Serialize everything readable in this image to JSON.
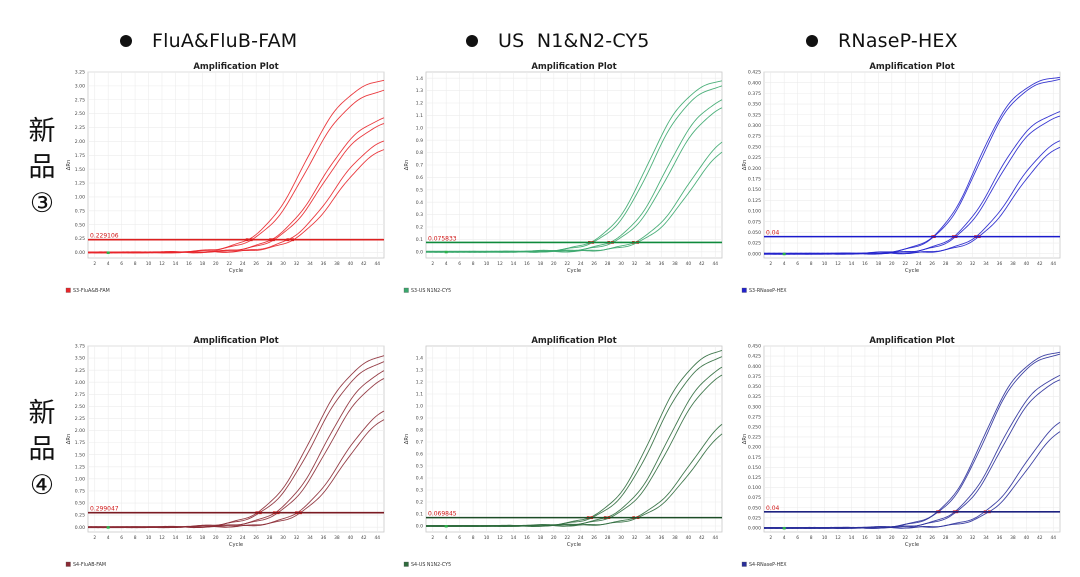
{
  "headers": [
    {
      "label": "FluA&FluB-FAM"
    },
    {
      "label": "US  N1&N2-CY5"
    },
    {
      "label": "RNaseP-HEX"
    }
  ],
  "rows": [
    {
      "label": [
        "新",
        "品",
        "③"
      ]
    },
    {
      "label": [
        "新",
        "品",
        "④"
      ]
    }
  ],
  "chart_data": [
    {
      "type": "line",
      "title": "Amplification Plot",
      "xlabel": "Cycle",
      "ylabel": "ΔRn",
      "xlim": [
        1,
        45
      ],
      "ylim": [
        -0.1,
        3.25
      ],
      "yticks": [
        0.0,
        0.25,
        0.5,
        0.75,
        1.0,
        1.25,
        1.5,
        1.75,
        2.0,
        2.25,
        2.5,
        2.75,
        3.0,
        3.25
      ],
      "ytick_labels": [
        "0.00",
        "0.25",
        "0.50",
        "0.75",
        "1.00",
        "1.25",
        "1.50",
        "1.75",
        "2.00",
        "2.25",
        "2.50",
        "2.75",
        "3.00",
        "3.25"
      ],
      "xticks": [
        2,
        4,
        6,
        8,
        10,
        12,
        14,
        16,
        18,
        20,
        22,
        24,
        26,
        28,
        30,
        32,
        34,
        36,
        38,
        40,
        42,
        44
      ],
      "threshold": 0.229106,
      "threshold_label": "0.229106",
      "color": "#e8252a",
      "threshold_color": "#dd1f1f",
      "legend": "S3-FluA&B-FAM",
      "series": [
        {
          "plateau": 3.2,
          "midpoint": 33.2,
          "slope": 0.3
        },
        {
          "plateau": 3.02,
          "midpoint": 33.6,
          "slope": 0.3
        },
        {
          "plateau": 2.55,
          "midpoint": 35.6,
          "slope": 0.31
        },
        {
          "plateau": 2.45,
          "midpoint": 35.9,
          "slope": 0.31
        },
        {
          "plateau": 2.18,
          "midpoint": 37.4,
          "slope": 0.32
        },
        {
          "plateau": 2.05,
          "midpoint": 37.9,
          "slope": 0.32
        }
      ]
    },
    {
      "type": "line",
      "title": "Amplification Plot",
      "xlabel": "Cycle",
      "ylabel": "ΔRn",
      "xlim": [
        1,
        45
      ],
      "ylim": [
        -0.05,
        1.45
      ],
      "yticks": [
        0.0,
        0.1,
        0.2,
        0.3,
        0.4,
        0.5,
        0.6,
        0.7,
        0.8,
        0.9,
        1.0,
        1.1,
        1.2,
        1.3,
        1.4
      ],
      "ytick_labels": [
        "0.0",
        "0.1",
        "0.2",
        "0.3",
        "0.4",
        "0.5",
        "0.6",
        "0.7",
        "0.8",
        "0.9",
        "1.0",
        "1.1",
        "1.2",
        "1.3",
        "1.4"
      ],
      "xticks": [
        2,
        4,
        6,
        8,
        10,
        12,
        14,
        16,
        18,
        20,
        22,
        24,
        26,
        28,
        30,
        32,
        34,
        36,
        38,
        40,
        42,
        44
      ],
      "threshold": 0.075833,
      "threshold_label": "0.075833",
      "color": "#3aa76d",
      "threshold_color": "#0f8a3c",
      "legend": "S3-US N1N2-CY5",
      "series": [
        {
          "plateau": 1.42,
          "midpoint": 34.0,
          "slope": 0.33
        },
        {
          "plateau": 1.38,
          "midpoint": 34.4,
          "slope": 0.33
        },
        {
          "plateau": 1.3,
          "midpoint": 36.6,
          "slope": 0.33
        },
        {
          "plateau": 1.24,
          "midpoint": 37.0,
          "slope": 0.33
        },
        {
          "plateau": 1.05,
          "midpoint": 39.8,
          "slope": 0.32
        },
        {
          "plateau": 0.98,
          "midpoint": 40.2,
          "slope": 0.32
        }
      ]
    },
    {
      "type": "line",
      "title": "Amplification Plot",
      "xlabel": "Cycle",
      "ylabel": "ΔRn",
      "xlim": [
        1,
        45
      ],
      "ylim": [
        -0.01,
        0.425
      ],
      "yticks": [
        0.0,
        0.025,
        0.05,
        0.075,
        0.1,
        0.125,
        0.15,
        0.175,
        0.2,
        0.225,
        0.25,
        0.275,
        0.3,
        0.325,
        0.35,
        0.375,
        0.4,
        0.425
      ],
      "ytick_labels": [
        "0.000",
        "0.025",
        "0.050",
        "0.075",
        "0.100",
        "0.125",
        "0.150",
        "0.175",
        "0.200",
        "0.225",
        "0.250",
        "0.275",
        "0.300",
        "0.325",
        "0.350",
        "0.375",
        "0.400",
        "0.425"
      ],
      "xticks": [
        2,
        4,
        6,
        8,
        10,
        12,
        14,
        16,
        18,
        20,
        22,
        24,
        26,
        28,
        30,
        32,
        34,
        36,
        38,
        40,
        42,
        44
      ],
      "threshold": 0.04,
      "threshold_label": "0.04",
      "color": "#2222cc",
      "threshold_color": "#1a1acc",
      "legend": "S3-RNaseP-HEX",
      "series": [
        {
          "plateau": 0.42,
          "midpoint": 32.7,
          "slope": 0.34
        },
        {
          "plateau": 0.415,
          "midpoint": 32.9,
          "slope": 0.34
        },
        {
          "plateau": 0.345,
          "midpoint": 35.3,
          "slope": 0.33
        },
        {
          "plateau": 0.335,
          "midpoint": 35.6,
          "slope": 0.33
        },
        {
          "plateau": 0.29,
          "midpoint": 38.0,
          "slope": 0.33
        },
        {
          "plateau": 0.278,
          "midpoint": 38.4,
          "slope": 0.33
        }
      ]
    },
    {
      "type": "line",
      "title": "Amplification Plot",
      "xlabel": "Cycle",
      "ylabel": "ΔRn",
      "xlim": [
        1,
        45
      ],
      "ylim": [
        -0.1,
        3.75
      ],
      "yticks": [
        0.0,
        0.25,
        0.5,
        0.75,
        1.0,
        1.25,
        1.5,
        1.75,
        2.0,
        2.25,
        2.5,
        2.75,
        3.0,
        3.25,
        3.5,
        3.75
      ],
      "ytick_labels": [
        "0.00",
        "0.25",
        "0.50",
        "0.75",
        "1.00",
        "1.25",
        "1.50",
        "1.75",
        "2.00",
        "2.25",
        "2.50",
        "2.75",
        "3.00",
        "3.25",
        "3.50",
        "3.75"
      ],
      "xticks": [
        2,
        4,
        6,
        8,
        10,
        12,
        14,
        16,
        18,
        20,
        22,
        24,
        26,
        28,
        30,
        32,
        34,
        36,
        38,
        40,
        42,
        44
      ],
      "threshold": 0.299047,
      "threshold_label": "0.299047",
      "color": "#8b2a34",
      "threshold_color": "#7a1a22",
      "legend": "S4-FluAB-FAM",
      "series": [
        {
          "plateau": 3.7,
          "midpoint": 34.2,
          "slope": 0.3
        },
        {
          "plateau": 3.58,
          "midpoint": 34.6,
          "slope": 0.3
        },
        {
          "plateau": 3.45,
          "midpoint": 36.3,
          "slope": 0.31
        },
        {
          "plateau": 3.3,
          "midpoint": 36.7,
          "slope": 0.31
        },
        {
          "plateau": 2.7,
          "midpoint": 38.5,
          "slope": 0.32
        },
        {
          "plateau": 2.55,
          "midpoint": 38.9,
          "slope": 0.32
        }
      ]
    },
    {
      "type": "line",
      "title": "Amplification Plot",
      "xlabel": "Cycle",
      "ylabel": "ΔRn",
      "xlim": [
        1,
        45
      ],
      "ylim": [
        -0.05,
        1.5
      ],
      "yticks": [
        0.0,
        0.1,
        0.2,
        0.3,
        0.4,
        0.5,
        0.6,
        0.7,
        0.8,
        0.9,
        1.0,
        1.1,
        1.2,
        1.3,
        1.4
      ],
      "ytick_labels": [
        "0.0",
        "0.1",
        "0.2",
        "0.3",
        "0.4",
        "0.5",
        "0.6",
        "0.7",
        "0.8",
        "0.9",
        "1.0",
        "1.1",
        "1.2",
        "1.3",
        "1.4"
      ],
      "xticks": [
        2,
        4,
        6,
        8,
        10,
        12,
        14,
        16,
        18,
        20,
        22,
        24,
        26,
        28,
        30,
        32,
        34,
        36,
        38,
        40,
        42,
        44
      ],
      "threshold": 0.069845,
      "threshold_label": "0.069845",
      "color": "#2f6b3d",
      "threshold_color": "#1c4d26",
      "legend": "S4-US N1N2-CY5",
      "series": [
        {
          "plateau": 1.52,
          "midpoint": 34.6,
          "slope": 0.32
        },
        {
          "plateau": 1.47,
          "midpoint": 35.0,
          "slope": 0.32
        },
        {
          "plateau": 1.42,
          "midpoint": 36.9,
          "slope": 0.32
        },
        {
          "plateau": 1.36,
          "midpoint": 37.3,
          "slope": 0.32
        },
        {
          "plateau": 1.05,
          "midpoint": 40.4,
          "slope": 0.31
        },
        {
          "plateau": 0.98,
          "midpoint": 40.8,
          "slope": 0.31
        }
      ]
    },
    {
      "type": "line",
      "title": "Amplification Plot",
      "xlabel": "Cycle",
      "ylabel": "ΔRn",
      "xlim": [
        1,
        45
      ],
      "ylim": [
        -0.01,
        0.45
      ],
      "yticks": [
        0.0,
        0.025,
        0.05,
        0.075,
        0.1,
        0.125,
        0.15,
        0.175,
        0.2,
        0.225,
        0.25,
        0.275,
        0.3,
        0.325,
        0.35,
        0.375,
        0.4,
        0.425,
        0.45
      ],
      "ytick_labels": [
        "0.000",
        "0.025",
        "0.050",
        "0.075",
        "0.100",
        "0.125",
        "0.150",
        "0.175",
        "0.200",
        "0.225",
        "0.250",
        "0.275",
        "0.300",
        "0.325",
        "0.350",
        "0.375",
        "0.400",
        "0.425",
        "0.450"
      ],
      "xticks": [
        2,
        4,
        6,
        8,
        10,
        12,
        14,
        16,
        18,
        20,
        22,
        24,
        26,
        28,
        30,
        32,
        34,
        36,
        38,
        40,
        42,
        44
      ],
      "threshold": 0.04,
      "threshold_label": "0.04",
      "color": "#2a2f9a",
      "threshold_color": "#1d2280",
      "legend": "S4-RNaseP-HEX",
      "series": [
        {
          "plateau": 0.445,
          "midpoint": 33.6,
          "slope": 0.34
        },
        {
          "plateau": 0.44,
          "midpoint": 33.8,
          "slope": 0.34
        },
        {
          "plateau": 0.395,
          "midpoint": 35.9,
          "slope": 0.33
        },
        {
          "plateau": 0.385,
          "midpoint": 36.2,
          "slope": 0.33
        },
        {
          "plateau": 0.305,
          "midpoint": 39.6,
          "slope": 0.33
        },
        {
          "plateau": 0.285,
          "midpoint": 40.0,
          "slope": 0.33
        }
      ]
    }
  ]
}
